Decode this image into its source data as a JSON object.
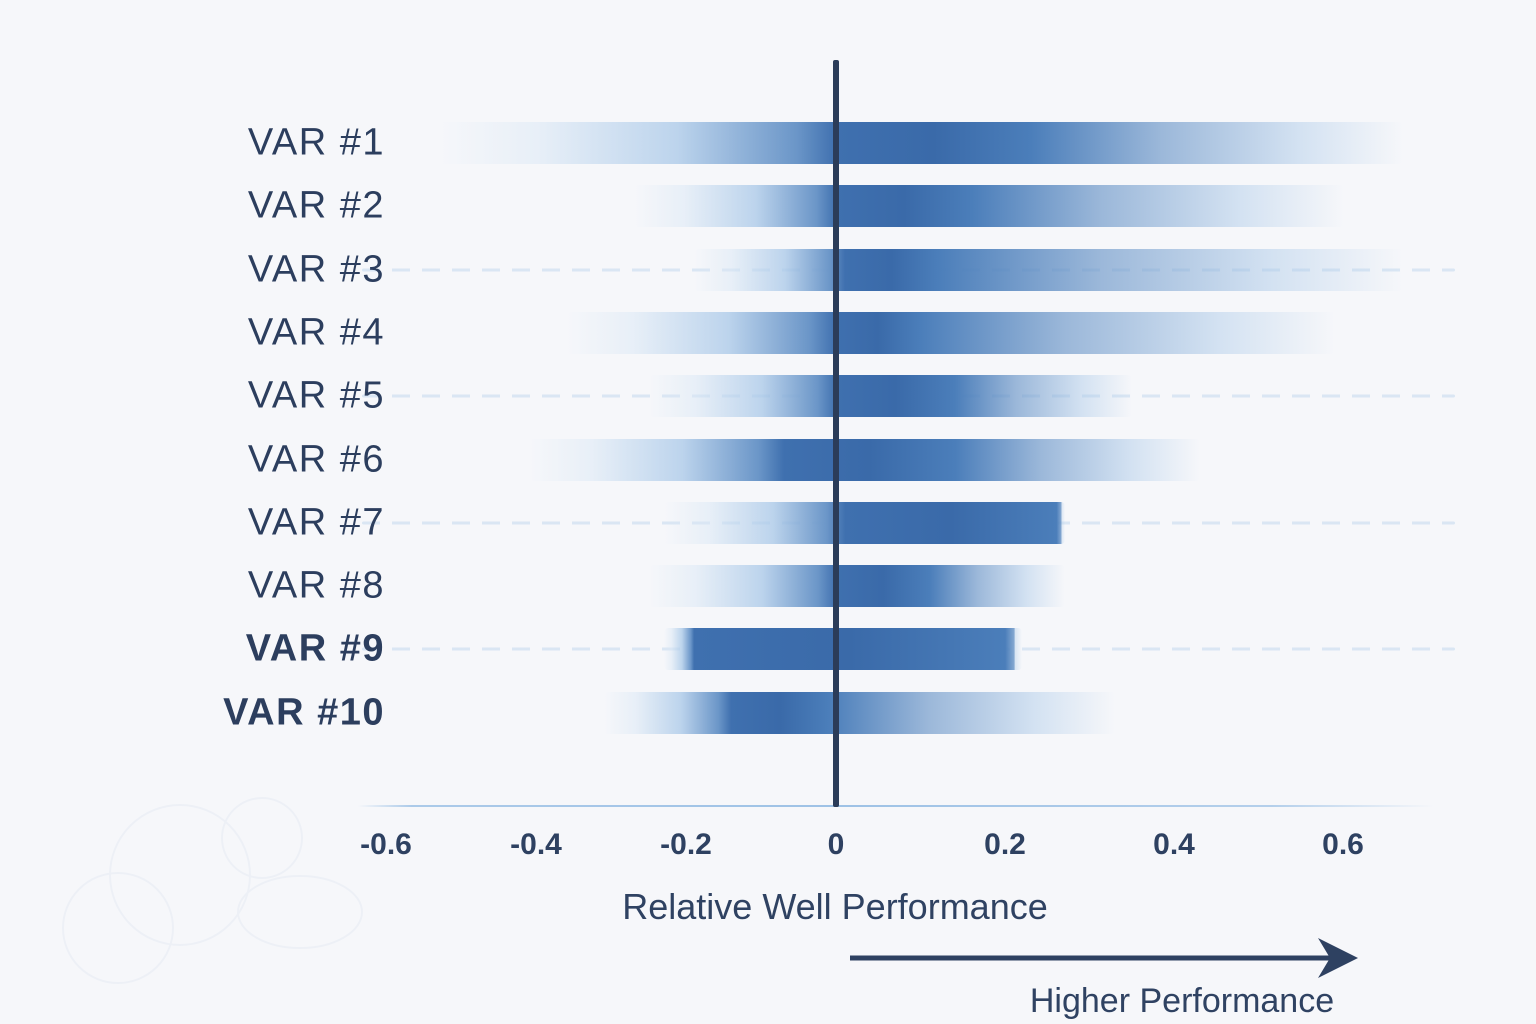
{
  "chart_data": {
    "type": "bar",
    "orientation": "horizontal-gradient-tornado",
    "title": "",
    "xlabel": "Relative Well Performance",
    "annotation": "Higher Performance",
    "xlim": [
      -0.75,
      0.75
    ],
    "legend": "none",
    "grid": "dashed-light-horizontal-on-rows-3-5-7-9",
    "categories": [
      "VAR #1",
      "VAR #2",
      "VAR #3",
      "VAR #4",
      "VAR #5",
      "VAR #6",
      "VAR #7",
      "VAR #8",
      "VAR #9",
      "VAR #10"
    ],
    "ticks": [
      {
        "value": -0.6,
        "label": "-0.6"
      },
      {
        "value": -0.4,
        "label": "-0.4"
      },
      {
        "value": -0.2,
        "label": "-0.2"
      },
      {
        "value": 0,
        "label": "0"
      },
      {
        "value": 0.2,
        "label": "0.2"
      },
      {
        "value": 0.4,
        "label": "0.4"
      },
      {
        "value": 0.6,
        "label": "0.6"
      }
    ],
    "rows": [
      {
        "label": "VAR #1",
        "range": [
          -0.53,
          0.67
        ],
        "peak": [
          0.0,
          0.23
        ],
        "bold": false,
        "gridline": false,
        "sharp_right": false
      },
      {
        "label": "VAR #2",
        "range": [
          -0.27,
          0.6
        ],
        "peak": [
          0.0,
          0.16
        ],
        "bold": false,
        "gridline": false,
        "sharp_right": false
      },
      {
        "label": "VAR #3",
        "range": [
          -0.19,
          0.67
        ],
        "peak": [
          0.01,
          0.12
        ],
        "bold": false,
        "gridline": true,
        "sharp_right": false
      },
      {
        "label": "VAR #4",
        "range": [
          -0.36,
          0.59
        ],
        "peak": [
          0.0,
          0.1
        ],
        "bold": false,
        "gridline": false,
        "sharp_right": false
      },
      {
        "label": "VAR #5",
        "range": [
          -0.25,
          0.35
        ],
        "peak": [
          0.0,
          0.14
        ],
        "bold": false,
        "gridline": true,
        "sharp_right": false
      },
      {
        "label": "VAR #6",
        "range": [
          -0.41,
          0.43
        ],
        "peak": [
          -0.07,
          0.14
        ],
        "bold": false,
        "gridline": false,
        "sharp_right": false
      },
      {
        "label": "VAR #7",
        "range": [
          -0.23,
          0.27
        ],
        "peak": [
          0.01,
          0.26
        ],
        "bold": false,
        "gridline": true,
        "sharp_right": true
      },
      {
        "label": "VAR #8",
        "range": [
          -0.25,
          0.27
        ],
        "peak": [
          0.0,
          0.11
        ],
        "bold": false,
        "gridline": false,
        "sharp_right": false
      },
      {
        "label": "VAR #9",
        "range": [
          -0.23,
          0.22
        ],
        "peak": [
          -0.19,
          0.2
        ],
        "bold": true,
        "gridline": true,
        "sharp_right": true
      },
      {
        "label": "VAR #10",
        "range": [
          -0.31,
          0.33
        ],
        "peak": [
          -0.14,
          -0.01
        ],
        "bold": true,
        "gridline": false,
        "sharp_right": false
      }
    ]
  },
  "colors": {
    "background": "#f6f7fa",
    "text": "#2c3e5e",
    "zero_line": "#2b3c59",
    "axis_line": "#9ec2e6",
    "gridline": "#d8e5f3",
    "bar_darkest": "#3a6aa9",
    "bar_dark": "#3f70af",
    "bar_main": "#4b7eba",
    "bar_mid": "#6b96c8",
    "bar_light": "#a9c8e8",
    "bar_pale": "#d9e7f5"
  }
}
